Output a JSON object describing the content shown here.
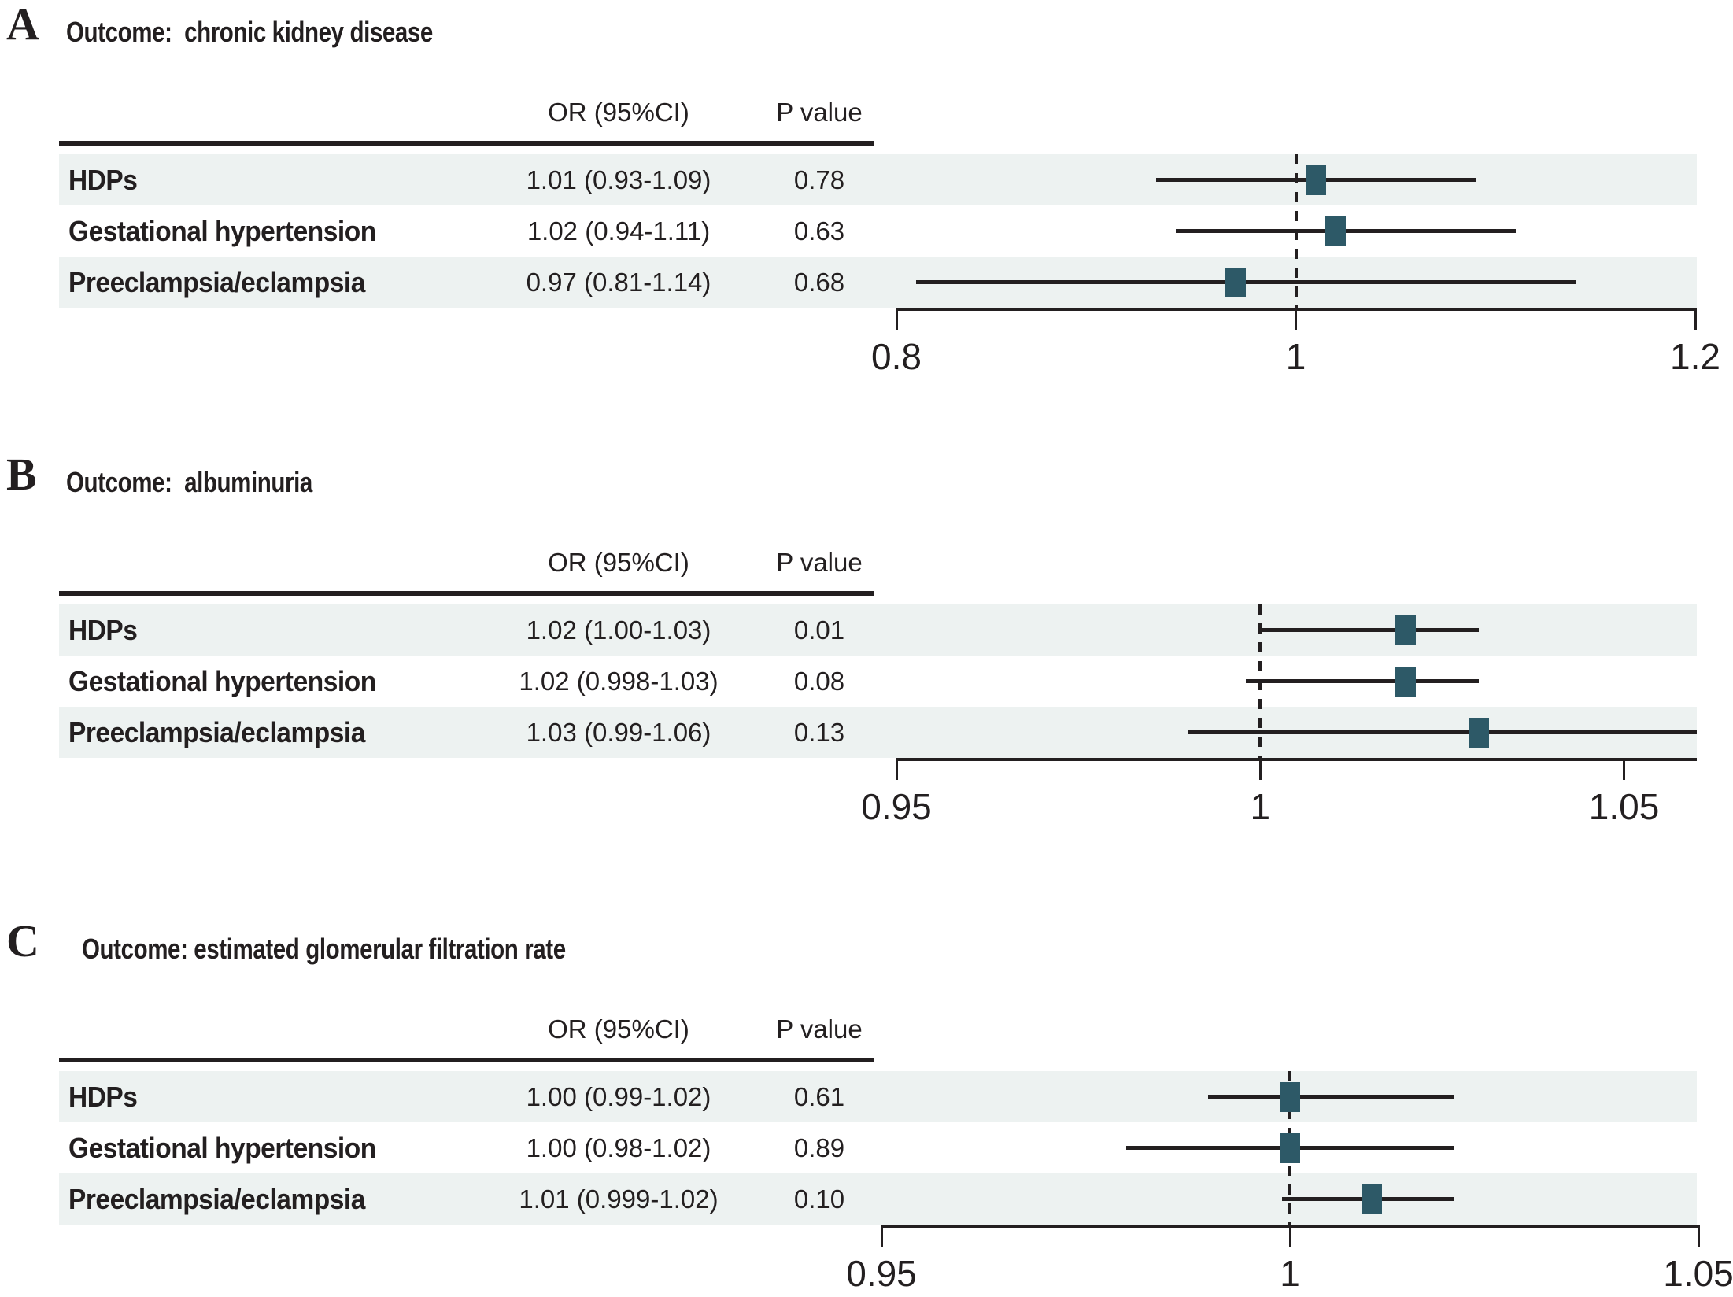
{
  "figure": {
    "kind": "three-panel forest plot",
    "panels_count": 3
  },
  "colors": {
    "ink": "#231f20",
    "row_band": "#edf2f1",
    "marker": "#2d5967",
    "background": "#ffffff"
  },
  "chart_data": [
    {
      "type": "scatter",
      "variant": "forest",
      "panel_label": "A",
      "title": "Outcome:  chronic kidney disease",
      "columns": {
        "or": "OR (95%CI)",
        "p": "P value"
      },
      "rows": [
        {
          "label": "HDPs",
          "or_ci_text": "1.01 (0.93-1.09)",
          "p_text": "0.78",
          "or": 1.01,
          "ci_low": 0.93,
          "ci_high": 1.09
        },
        {
          "label": "Gestational hypertension",
          "or_ci_text": "1.02 (0.94-1.11)",
          "p_text": "0.63",
          "or": 1.02,
          "ci_low": 0.94,
          "ci_high": 1.11
        },
        {
          "label": "Preeclampsia/eclampsia",
          "or_ci_text": "0.97 (0.81-1.14)",
          "p_text": "0.68",
          "or": 0.97,
          "ci_low": 0.81,
          "ci_high": 1.14
        }
      ],
      "xaxis": {
        "range": [
          0.8,
          1.2
        ],
        "ticks": [
          0.8,
          1,
          1.2
        ],
        "tick_labels": [
          "0.8",
          "1",
          "1.2"
        ],
        "reference_line": 1,
        "grid": false,
        "legend": false
      }
    },
    {
      "type": "scatter",
      "variant": "forest",
      "panel_label": "B",
      "title": "Outcome:  albuminuria",
      "columns": {
        "or": "OR (95%CI)",
        "p": "P value"
      },
      "rows": [
        {
          "label": "HDPs",
          "or_ci_text": "1.02 (1.00-1.03)",
          "p_text": "0.01",
          "or": 1.02,
          "ci_low": 1.0,
          "ci_high": 1.03
        },
        {
          "label": "Gestational hypertension",
          "or_ci_text": "1.02 (0.998-1.03)",
          "p_text": "0.08",
          "or": 1.02,
          "ci_low": 0.998,
          "ci_high": 1.03
        },
        {
          "label": "Preeclampsia/eclampsia",
          "or_ci_text": "1.03 (0.99-1.06)",
          "p_text": "0.13",
          "or": 1.03,
          "ci_low": 0.99,
          "ci_high": 1.06
        }
      ],
      "xaxis": {
        "range": [
          0.95,
          1.06
        ],
        "ticks": [
          0.95,
          1,
          1.05
        ],
        "tick_labels": [
          "0.95",
          "1",
          "1.05"
        ],
        "reference_line": 1,
        "grid": false,
        "legend": false
      }
    },
    {
      "type": "scatter",
      "variant": "forest",
      "panel_label": "C",
      "title": "Outcome: estimated glomerular filtration rate",
      "columns": {
        "or": "OR (95%CI)",
        "p": "P value"
      },
      "rows": [
        {
          "label": "HDPs",
          "or_ci_text": "1.00 (0.99-1.02)",
          "p_text": "0.61",
          "or": 1.0,
          "ci_low": 0.99,
          "ci_high": 1.02
        },
        {
          "label": "Gestational hypertension",
          "or_ci_text": "1.00 (0.98-1.02)",
          "p_text": "0.89",
          "or": 1.0,
          "ci_low": 0.98,
          "ci_high": 1.02
        },
        {
          "label": "Preeclampsia/eclampsia",
          "or_ci_text": "1.01 (0.999-1.02)",
          "p_text": "0.10",
          "or": 1.01,
          "ci_low": 0.999,
          "ci_high": 1.02
        }
      ],
      "xaxis": {
        "range": [
          0.95,
          1.05
        ],
        "ticks": [
          0.95,
          1,
          1.05
        ],
        "tick_labels": [
          "0.95",
          "1",
          "1.05"
        ],
        "reference_line": 1,
        "grid": false,
        "legend": false
      }
    }
  ]
}
